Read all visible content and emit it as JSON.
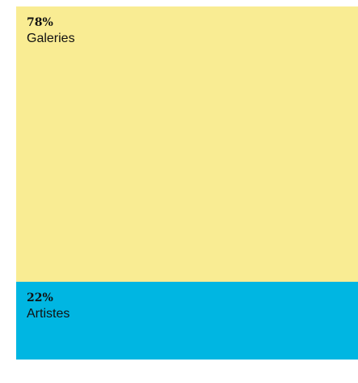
{
  "chart_data": {
    "type": "stacked-bar",
    "orientation": "vertical",
    "unit": "%",
    "segments": [
      {
        "label": "Galeries",
        "value": 78,
        "display": "78%",
        "color": "#f9ec93"
      },
      {
        "label": "Artistes",
        "value": 22,
        "display": "22%",
        "color": "#00b6e2"
      }
    ]
  }
}
